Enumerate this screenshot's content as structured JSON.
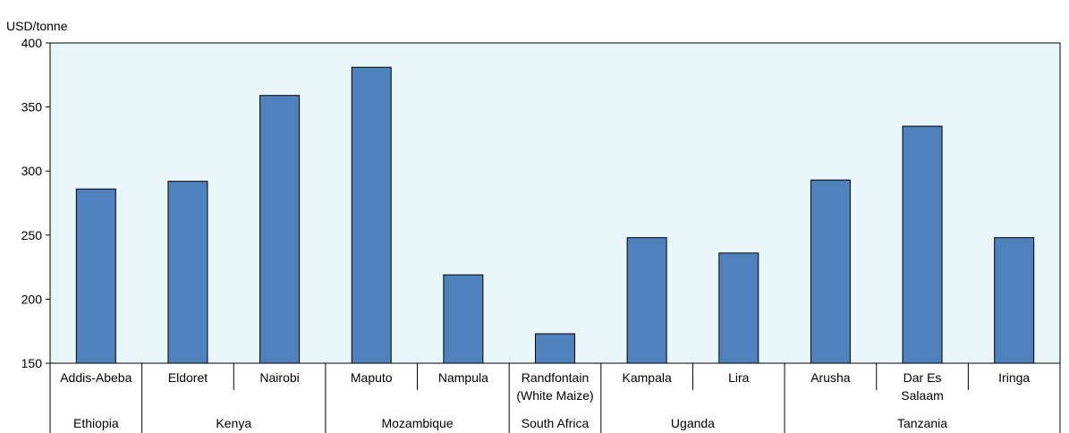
{
  "chart_data": {
    "type": "bar",
    "ylabel": "USD/tonne",
    "ylim": [
      150,
      400
    ],
    "yticks": [
      150,
      200,
      250,
      300,
      350,
      400
    ],
    "grid": false,
    "categories": [
      [
        "Addis-Abeba"
      ],
      [
        "Eldoret"
      ],
      [
        "Nairobi"
      ],
      [
        "Maputo"
      ],
      [
        "Nampula"
      ],
      [
        "Randfontain",
        "(White Maize)"
      ],
      [
        "Kampala"
      ],
      [
        "Lira"
      ],
      [
        "Arusha"
      ],
      [
        "Dar Es",
        "Salaam"
      ],
      [
        "Iringa"
      ]
    ],
    "values": [
      286,
      292,
      359,
      381,
      219,
      173,
      248,
      236,
      293,
      335,
      248
    ],
    "groups": [
      {
        "label": "Ethiopia",
        "count": 1
      },
      {
        "label": "Kenya",
        "count": 2
      },
      {
        "label": "Mozambique",
        "count": 2
      },
      {
        "label": "South Africa",
        "count": 1
      },
      {
        "label": "Uganda",
        "count": 2
      },
      {
        "label": "Tanzania",
        "count": 3
      }
    ],
    "colors": {
      "bar": "#4f81bd",
      "bar_stroke": "#000000",
      "plot_background": "#eaf7fa",
      "axis": "#000000"
    }
  }
}
